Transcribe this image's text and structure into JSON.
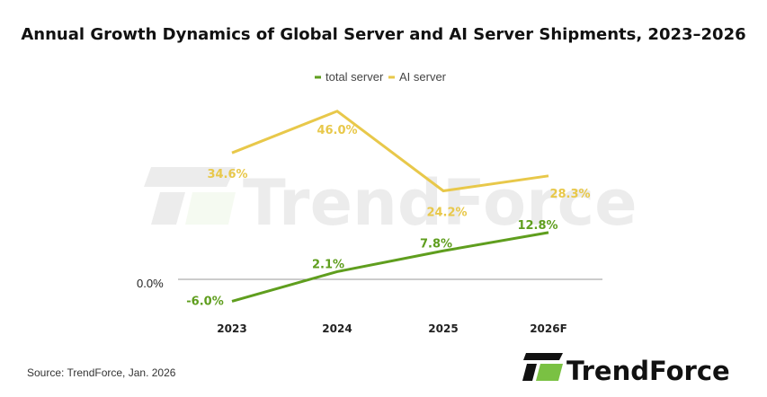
{
  "chart_data": {
    "type": "line",
    "title": "Annual Growth Dynamics of Global Server and AI Server Shipments, 2023–2026",
    "categories": [
      "2023",
      "2024",
      "2025",
      "2026F"
    ],
    "series": [
      {
        "name": "total server",
        "values": [
          -6.0,
          2.1,
          7.8,
          12.8
        ],
        "labels": [
          "-6.0%",
          "2.1%",
          "7.8%",
          "12.8%"
        ],
        "color": "#5f9e1e"
      },
      {
        "name": "AI server",
        "values": [
          34.6,
          46.0,
          24.2,
          28.3
        ],
        "labels": [
          "34.6%",
          "46.0%",
          "24.2%",
          "28.3%"
        ],
        "color": "#e8c84a"
      }
    ],
    "y_tick_label": "0.0%",
    "legend": "top-center",
    "grid": false
  },
  "source": "Source: TrendForce, Jan. 2026",
  "logo": {
    "text": "TrendForce",
    "colors": {
      "dark": "#111111",
      "green": "#7ac143"
    }
  }
}
